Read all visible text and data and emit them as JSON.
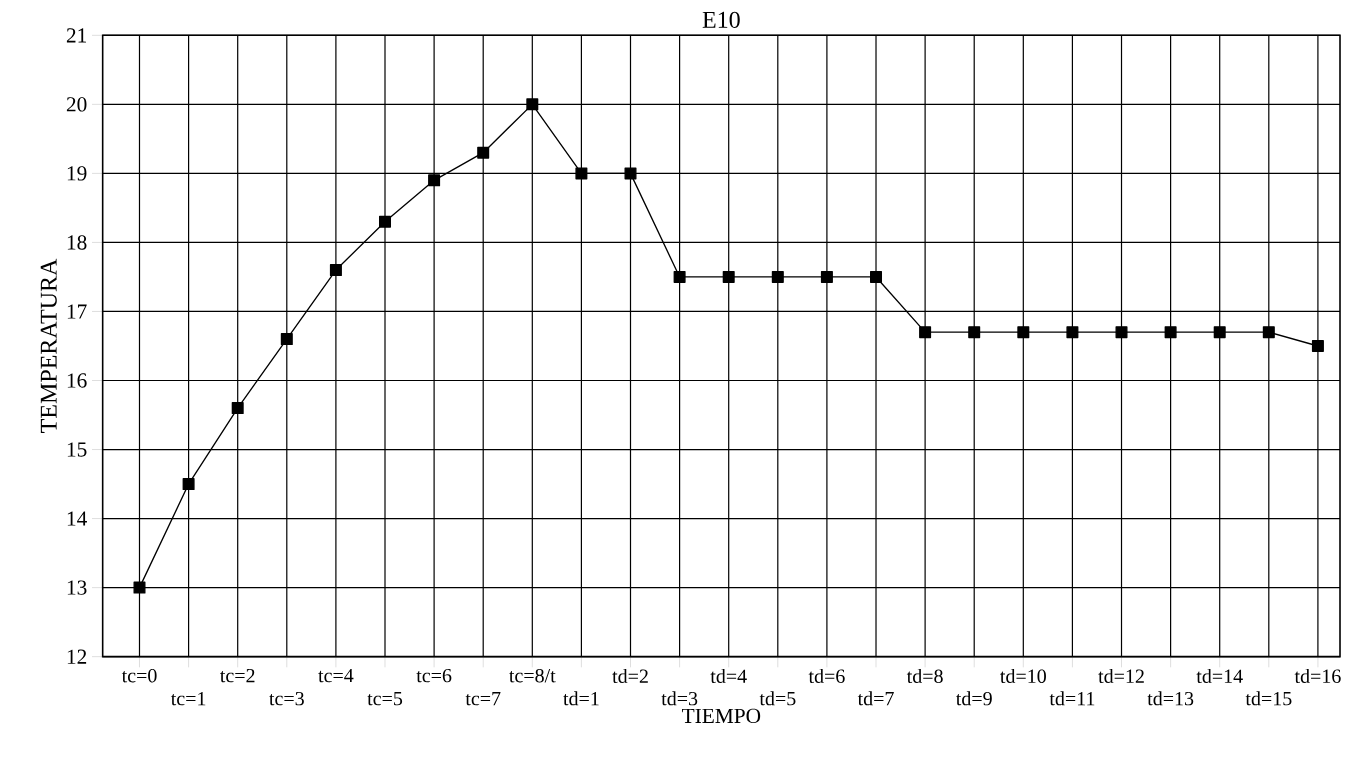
{
  "chart_data": {
    "type": "line",
    "title": "E10",
    "xlabel": "TIEMPO",
    "ylabel": "TEMPERATURA",
    "categories": [
      "tc=0",
      "tc=1",
      "tc=2",
      "tc=3",
      "tc=4",
      "tc=5",
      "tc=6",
      "tc=7",
      "tc=8/t",
      "td=1",
      "td=2",
      "td=3",
      "td=4",
      "td=5",
      "td=6",
      "td=7",
      "td=8",
      "td=9",
      "td=10",
      "td=11",
      "td=12",
      "td=13",
      "td=14",
      "td=15",
      "td=16"
    ],
    "series": [
      {
        "color": "#000000",
        "values": [
          13,
          14.5,
          15.6,
          16.6,
          17.6,
          18.3,
          18.9,
          19.3,
          20,
          19,
          19,
          17.5,
          17.5,
          17.5,
          17.5,
          17.5,
          16.7,
          16.7,
          16.7,
          16.7,
          16.7,
          16.7,
          16.7,
          16.7,
          16.5
        ]
      }
    ],
    "ylim": [
      12,
      21
    ],
    "yticks": [
      12,
      13,
      14,
      15,
      16,
      17,
      18,
      19,
      20,
      21
    ],
    "grid": true,
    "marker": "square",
    "line_style": "solid"
  }
}
